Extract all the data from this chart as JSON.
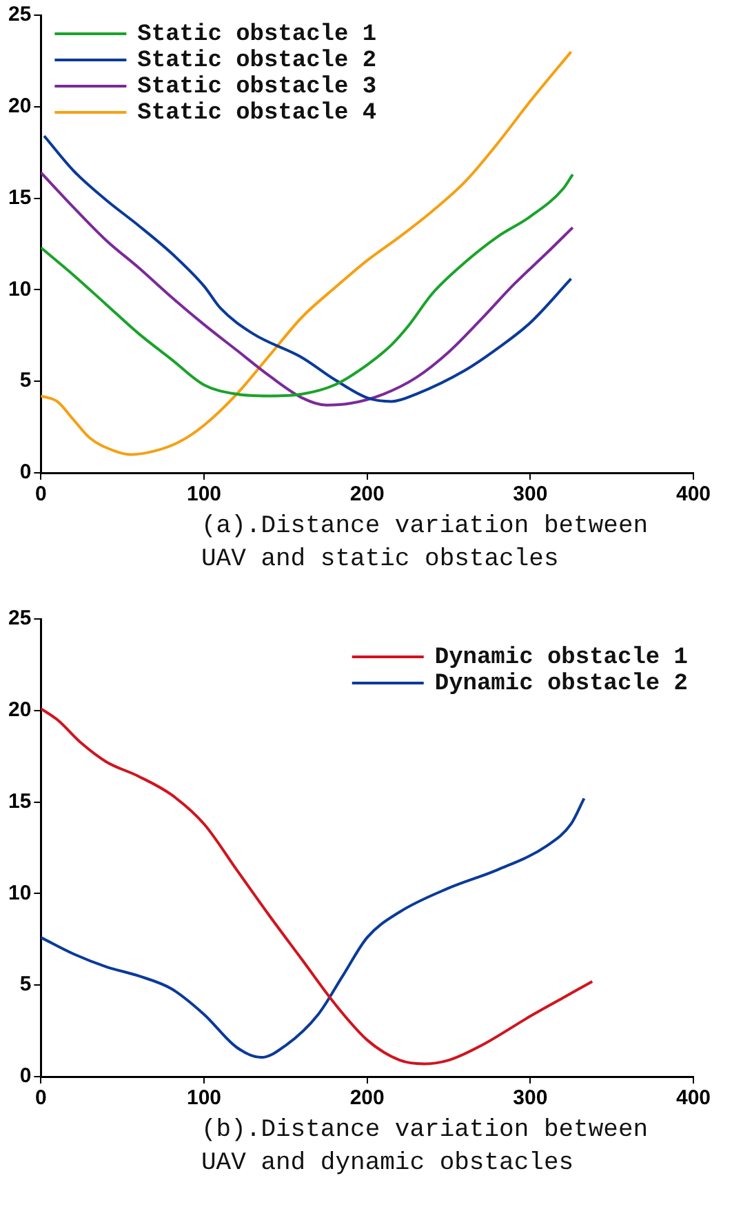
{
  "chart_data": [
    {
      "type": "line",
      "marker": "none",
      "legend": "top left",
      "grid": false,
      "xlim": [
        0,
        400
      ],
      "xticks": [
        0,
        100,
        200,
        300,
        400
      ],
      "ylim": [
        0,
        25
      ],
      "yticks": [
        0,
        5,
        10,
        15,
        20,
        25
      ],
      "annotations": [
        "(a).Distance variation between UAV and static obstacles"
      ],
      "series": [
        {
          "name": "Static obstacle 1",
          "color": "#1aa32a",
          "x": [
            0,
            20,
            40,
            60,
            80,
            100,
            120,
            140,
            160,
            180,
            200,
            215,
            225,
            240,
            260,
            280,
            300,
            320,
            326
          ],
          "values": [
            12.3,
            10.8,
            9.2,
            7.6,
            6.2,
            4.8,
            4.3,
            4.2,
            4.3,
            4.8,
            5.9,
            7.0,
            8.0,
            9.8,
            11.5,
            12.9,
            14.0,
            15.5,
            16.3
          ]
        },
        {
          "name": "Static obstacle 2",
          "color": "#0a3a9a",
          "x": [
            2,
            20,
            40,
            60,
            80,
            100,
            110,
            130,
            160,
            180,
            200,
            215,
            230,
            260,
            280,
            300,
            325
          ],
          "values": [
            18.4,
            16.5,
            14.9,
            13.5,
            12.0,
            10.2,
            9.0,
            7.6,
            6.3,
            5.1,
            4.1,
            3.9,
            4.3,
            5.6,
            6.8,
            8.2,
            10.6
          ]
        },
        {
          "name": "Static obstacle 3",
          "color": "#7b2a9a",
          "x": [
            0,
            20,
            40,
            60,
            80,
            100,
            120,
            140,
            160,
            175,
            190,
            210,
            230,
            250,
            270,
            290,
            310,
            326
          ],
          "values": [
            16.4,
            14.5,
            12.7,
            11.2,
            9.6,
            8.1,
            6.7,
            5.3,
            4.1,
            3.7,
            3.8,
            4.3,
            5.2,
            6.6,
            8.4,
            10.3,
            12.0,
            13.4
          ]
        },
        {
          "name": "Static obstacle 4",
          "color": "#f5a013",
          "x": [
            0,
            10,
            20,
            30,
            45,
            55,
            70,
            85,
            100,
            120,
            140,
            160,
            180,
            200,
            220,
            240,
            260,
            280,
            300,
            325
          ],
          "values": [
            4.2,
            3.9,
            2.9,
            1.9,
            1.2,
            1.0,
            1.2,
            1.7,
            2.6,
            4.3,
            6.4,
            8.5,
            10.1,
            11.6,
            12.9,
            14.3,
            15.9,
            18.0,
            20.3,
            23.0
          ]
        }
      ]
    },
    {
      "type": "line",
      "marker": "none",
      "legend": "top right",
      "grid": false,
      "xlim": [
        0,
        400
      ],
      "xticks": [
        0,
        100,
        200,
        300,
        400
      ],
      "ylim": [
        0,
        25
      ],
      "yticks": [
        0,
        5,
        10,
        15,
        20,
        25
      ],
      "annotations": [
        "(b).Distance variation between UAV and dynamic obstacles"
      ],
      "series": [
        {
          "name": "Dynamic obstacle 1",
          "color": "#d0141e",
          "x": [
            0,
            10,
            25,
            40,
            60,
            80,
            100,
            120,
            140,
            160,
            180,
            200,
            220,
            235,
            250,
            270,
            300,
            320,
            338
          ],
          "values": [
            20.1,
            19.5,
            18.2,
            17.2,
            16.4,
            15.4,
            13.8,
            11.3,
            8.8,
            6.4,
            4.0,
            2.0,
            0.9,
            0.7,
            0.9,
            1.7,
            3.3,
            4.3,
            5.2
          ]
        },
        {
          "name": "Dynamic obstacle 2",
          "color": "#0a3a9a",
          "x": [
            0,
            20,
            40,
            60,
            80,
            100,
            120,
            135,
            150,
            170,
            185,
            200,
            220,
            250,
            280,
            310,
            325,
            333
          ],
          "values": [
            7.6,
            6.7,
            6.0,
            5.5,
            4.8,
            3.4,
            1.6,
            1.05,
            1.7,
            3.4,
            5.5,
            7.6,
            9.0,
            10.3,
            11.3,
            12.6,
            13.8,
            15.2
          ]
        }
      ]
    }
  ]
}
